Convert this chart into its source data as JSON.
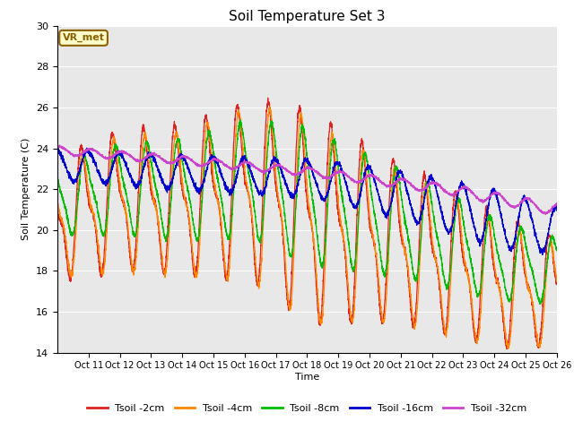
{
  "title": "Soil Temperature Set 3",
  "xlabel": "Time",
  "ylabel": "Soil Temperature (C)",
  "ylim": [
    14,
    30
  ],
  "xlim": [
    0,
    384
  ],
  "bg_color": "#e8e8e8",
  "plot_bg_color": "#e8e8e8",
  "annotation_text": "VR_met",
  "annotation_bg": "#ffffcc",
  "annotation_border": "#8b6000",
  "xtick_labels": [
    "Oct 11",
    "Oct 12",
    "Oct 13",
    "Oct 14",
    "Oct 15",
    "Oct 16",
    "Oct 17",
    "Oct 18",
    "Oct 19",
    "Oct 20",
    "Oct 21",
    "Oct 22",
    "Oct 23",
    "Oct 24",
    "Oct 25",
    "Oct 26"
  ],
  "ytick_values": [
    14,
    16,
    18,
    20,
    22,
    24,
    26,
    28,
    30
  ],
  "series": [
    {
      "label": "Tsoil -2cm",
      "color": "#dd2222"
    },
    {
      "label": "Tsoil -4cm",
      "color": "#ff8800"
    },
    {
      "label": "Tsoil -8cm",
      "color": "#00bb00"
    },
    {
      "label": "Tsoil -16cm",
      "color": "#0000cc"
    },
    {
      "label": "Tsoil -32cm",
      "color": "#cc44cc"
    }
  ]
}
